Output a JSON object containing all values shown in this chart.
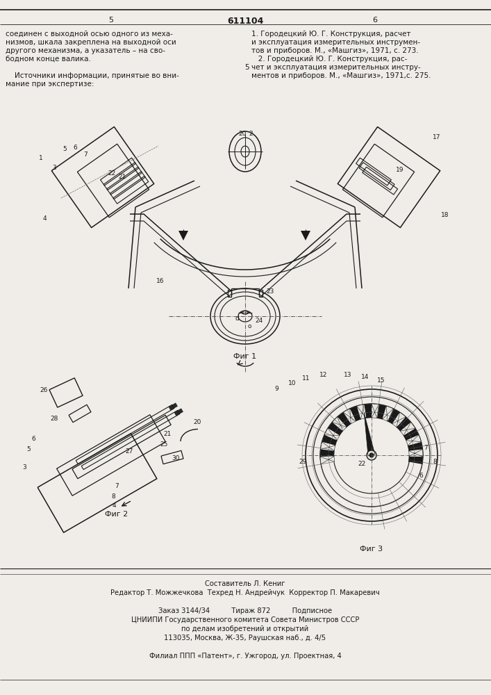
{
  "page_width": 7.07,
  "page_height": 10.0,
  "bg_color": "#f0ede8",
  "line_color": "#1a1a1a",
  "top_text_left": [
    "соединен с выходной осью одного из меха-",
    "низмов, шкала закреплена на выходной оси",
    "другого механизма, а указатель – на сво-",
    "бодном конце валика.",
    "",
    "    Источники информации, принятые во вни-",
    "мание при экспертизе:"
  ],
  "top_text_right": [
    "1. Городецкий Ю. Г. Конструкция, расчет",
    "и эксплуатация измерительных инструмен-",
    "тов и приборов. М., «Машгиз», 1971, с. 273.",
    "   2. Городецкий Ю. Г. Конструкция, рас-",
    "чет и эксплуатация измерительных инстру-",
    "ментов и приборов. М., «Машгиз», 1971,с. 275."
  ],
  "fig1_caption": "Фиг 1",
  "fig2_caption": "Фиг 2",
  "fig3_caption": "Фиг 3",
  "bottom_text": [
    "Составитель Л. Кениг",
    "Редактор Т. Можжечкова  Техред Н. Андрейчук  Корректор П. Макаревич",
    "",
    "Заказ 3144/34          Тираж 872          Подписное",
    "ЦНИИПИ Государственного комитета Совета Министров СССР",
    "по делам изобретений и открытий",
    "113035, Москва, Ж-35, Раушская наб., д. 4/5",
    "",
    "Филиал ППП «Патент», г. Ужгород, ул. Проектная, 4"
  ]
}
